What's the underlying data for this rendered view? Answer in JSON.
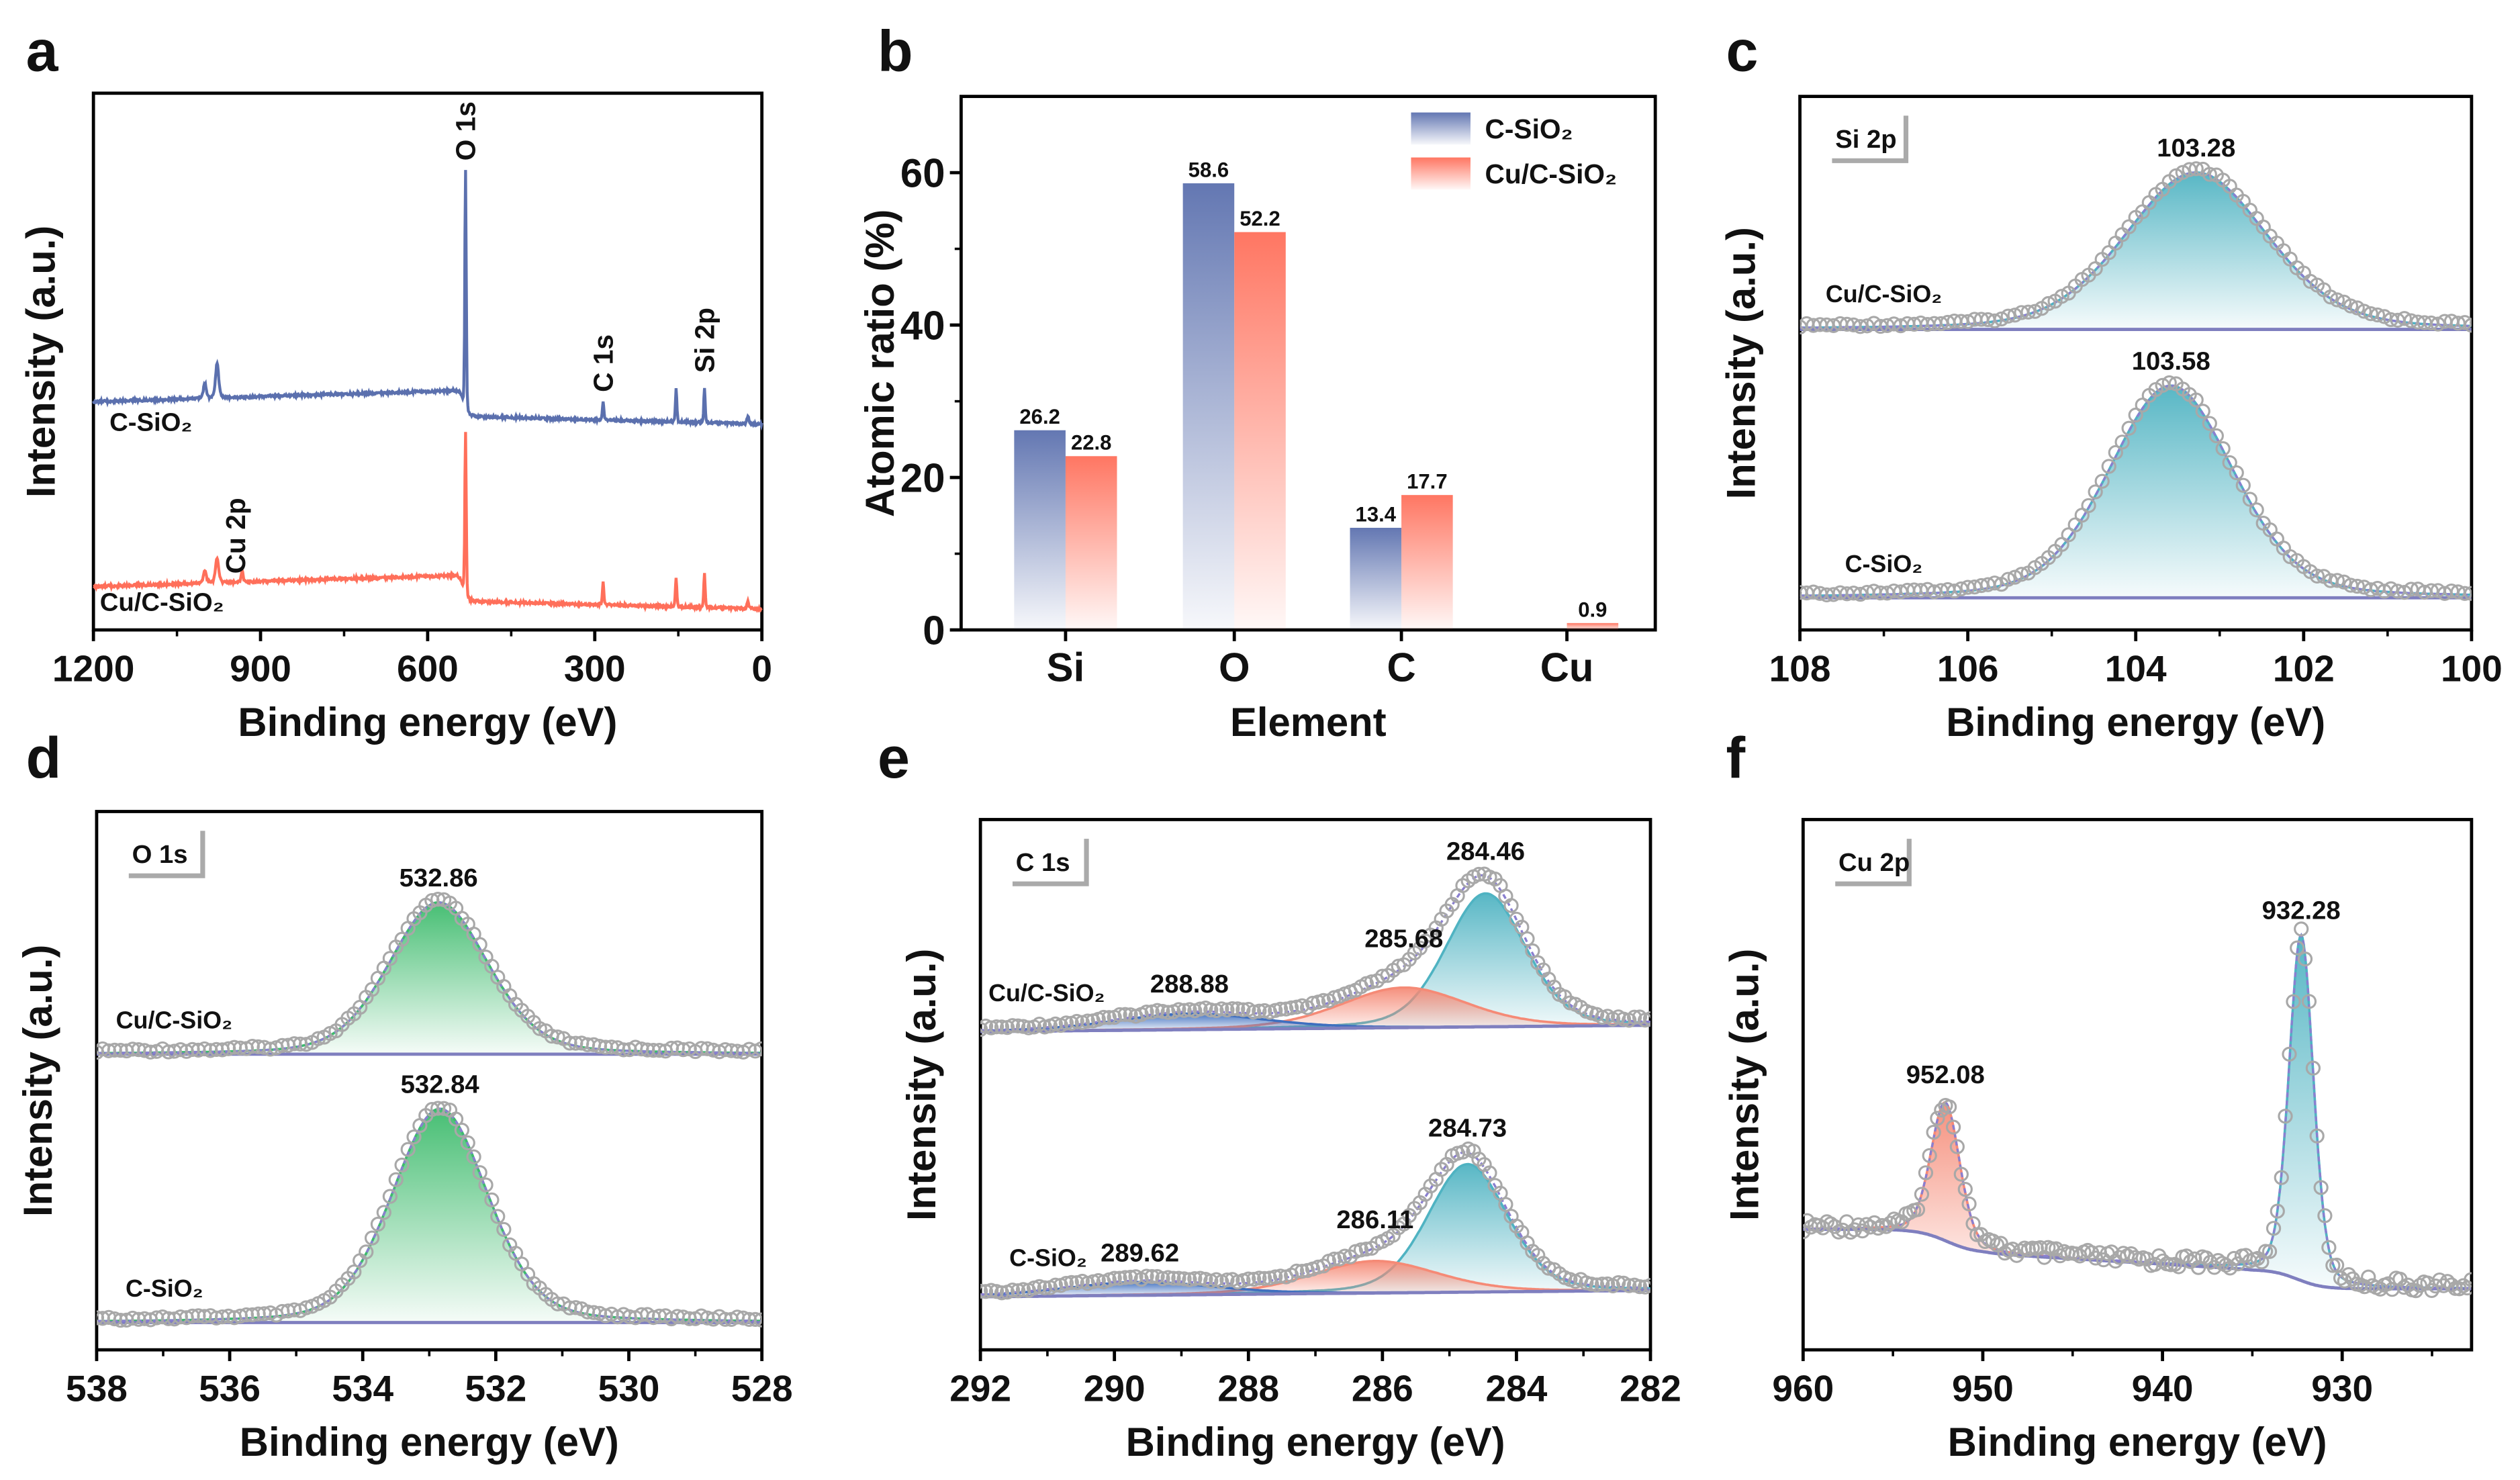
{
  "panel_labels": [
    "a",
    "b",
    "c",
    "d",
    "e",
    "f"
  ],
  "colors": {
    "c_sio2": "#5b70ae",
    "cu_c_sio2": "#ff6f5a",
    "teal": "#4fb3c2",
    "green": "#3dbb6c",
    "salmon": "#f58a76",
    "blue_comp": "#3f6fbf",
    "background_line": "#7f7fbf",
    "envelope": "#8a7fd0",
    "data_points": "#a8a8a8"
  },
  "chart_data": [
    {
      "panel": "a",
      "type": "line",
      "xlabel": "Binding energy (eV)",
      "ylabel": "Intensity (a.u.)",
      "xlim": [
        1200,
        0
      ],
      "xticks": [
        "1200",
        "900",
        "600",
        "300",
        "0"
      ],
      "series": [
        {
          "name": "C-SiO₂",
          "color": "#5b70ae",
          "peaks": [
            {
              "center": 532,
              "fwhm": 3,
              "height": 1.0
            },
            {
              "center": 285,
              "fwhm": 3,
              "height": 0.08
            },
            {
              "center": 154,
              "fwhm": 3,
              "height": 0.14
            },
            {
              "center": 103,
              "fwhm": 3,
              "height": 0.14
            },
            {
              "center": 978,
              "fwhm": 7,
              "height": 0.14
            },
            {
              "center": 1000,
              "fwhm": 6,
              "height": 0.06
            },
            {
              "center": 25,
              "fwhm": 4,
              "height": 0.03
            }
          ]
        },
        {
          "name": "Cu/C-SiO₂",
          "color": "#ff6f5a",
          "peaks": [
            {
              "center": 532,
              "fwhm": 3,
              "height": 0.68
            },
            {
              "center": 285,
              "fwhm": 3,
              "height": 0.1
            },
            {
              "center": 154,
              "fwhm": 3,
              "height": 0.12
            },
            {
              "center": 103,
              "fwhm": 3,
              "height": 0.14
            },
            {
              "center": 978,
              "fwhm": 7,
              "height": 0.1
            },
            {
              "center": 1000,
              "fwhm": 6,
              "height": 0.05
            },
            {
              "center": 933,
              "fwhm": 4,
              "height": 0.05
            },
            {
              "center": 25,
              "fwhm": 4,
              "height": 0.03
            }
          ]
        }
      ],
      "annotations": [
        {
          "text": "O 1s",
          "x": 532
        },
        {
          "text": "C 1s",
          "x": 285
        },
        {
          "text": "Si 2p",
          "x": 103
        },
        {
          "text": "Cu 2p",
          "x": 933
        }
      ]
    },
    {
      "panel": "b",
      "type": "bar",
      "xlabel": "Element",
      "ylabel": "Atomic ratio (%)",
      "categories": [
        "Si",
        "O",
        "C",
        "Cu"
      ],
      "ylim": [
        0,
        70
      ],
      "yticks": [
        "0",
        "20",
        "40",
        "60"
      ],
      "legend": "top-right",
      "series": [
        {
          "name": "C-SiO₂",
          "color": "#5b70ae",
          "values": [
            26.2,
            58.6,
            13.4,
            null
          ],
          "labels": [
            "26.2",
            "58.6",
            "13.4",
            ""
          ]
        },
        {
          "name": "Cu/C-SiO₂",
          "color": "#ff6f5a",
          "values": [
            22.8,
            52.2,
            17.7,
            0.9
          ],
          "labels": [
            "22.8",
            "52.2",
            "17.7",
            "0.9"
          ]
        }
      ]
    },
    {
      "panel": "c",
      "type": "scatter",
      "region": "Si 2p",
      "xlabel": "Binding energy (eV)",
      "ylabel": "Intensity (a.u.)",
      "xlim": [
        108,
        100
      ],
      "xticks": [
        "108",
        "106",
        "104",
        "102",
        "100"
      ],
      "spectra": [
        {
          "name": "Cu/C-SiO₂",
          "peaks": [
            {
              "center": 103.28,
              "fwhm": 2.0,
              "height": 0.74,
              "label": "103.28",
              "color": "#4fb3c2"
            }
          ]
        },
        {
          "name": "C-SiO₂",
          "peaks": [
            {
              "center": 103.58,
              "fwhm": 1.75,
              "height": 1.0,
              "label": "103.58",
              "color": "#4fb3c2"
            }
          ]
        }
      ]
    },
    {
      "panel": "d",
      "type": "scatter",
      "region": "O 1s",
      "xlabel": "Binding energy (eV)",
      "ylabel": "Intensity (a.u.)",
      "xlim": [
        538,
        528
      ],
      "xticks": [
        "538",
        "536",
        "534",
        "532",
        "530",
        "528"
      ],
      "spectra": [
        {
          "name": "Cu/C-SiO₂",
          "peaks": [
            {
              "center": 532.86,
              "fwhm": 1.75,
              "height": 0.71,
              "label": "532.86",
              "color": "#3dbb6c"
            }
          ]
        },
        {
          "name": "C-SiO₂",
          "peaks": [
            {
              "center": 532.84,
              "fwhm": 1.7,
              "height": 1.0,
              "label": "532.84",
              "color": "#3dbb6c"
            }
          ]
        }
      ]
    },
    {
      "panel": "e",
      "type": "scatter",
      "region": "C 1s",
      "xlabel": "Binding energy (eV)",
      "ylabel": "Intensity (a.u.)",
      "xlim": [
        292,
        282
      ],
      "xticks": [
        "292",
        "290",
        "288",
        "286",
        "284",
        "282"
      ],
      "spectra": [
        {
          "name": "Cu/C-SiO₂",
          "peaks": [
            {
              "center": 284.46,
              "fwhm": 1.4,
              "height": 1.0,
              "label": "284.46",
              "color": "#4fb3c2"
            },
            {
              "center": 285.68,
              "fwhm": 2.2,
              "height": 0.3,
              "label": "285.68",
              "color": "#f58a76"
            },
            {
              "center": 288.88,
              "fwhm": 2.6,
              "height": 0.12,
              "label": "288.88",
              "color": "#3f6fbf"
            }
          ]
        },
        {
          "name": "C-SiO₂",
          "peaks": [
            {
              "center": 284.73,
              "fwhm": 1.4,
              "height": 0.96,
              "label": "284.73",
              "color": "#4fb3c2"
            },
            {
              "center": 286.11,
              "fwhm": 2.2,
              "height": 0.24,
              "label": "286.11",
              "color": "#f58a76"
            },
            {
              "center": 289.62,
              "fwhm": 2.6,
              "height": 0.1,
              "label": "289.62",
              "color": "#3f6fbf"
            }
          ]
        }
      ]
    },
    {
      "panel": "f",
      "type": "scatter",
      "region": "Cu 2p",
      "xlabel": "Binding energy (eV)",
      "ylabel": "Intensity (a.u.)",
      "xlim": [
        960,
        922.8
      ],
      "xticks": [
        "960",
        "950",
        "940",
        "930"
      ],
      "spectra": [
        {
          "name": "",
          "peaks": [
            {
              "center": 932.28,
              "fwhm": 1.6,
              "height": 1.0,
              "label": "932.28",
              "color": "#4fb3c2"
            },
            {
              "center": 952.08,
              "fwhm": 1.9,
              "height": 0.4,
              "label": "952.08",
              "color": "#f58a76"
            }
          ]
        }
      ]
    }
  ]
}
